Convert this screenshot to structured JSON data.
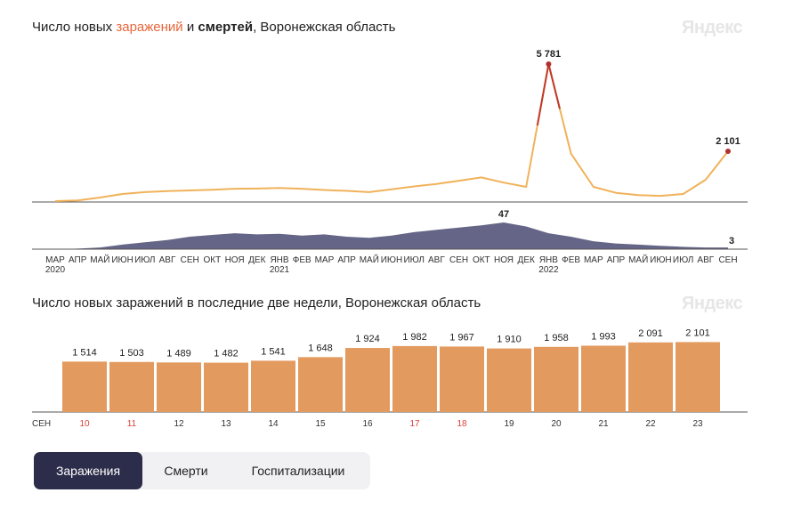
{
  "chart1": {
    "title_prefix": "Число новых ",
    "title_infections": "заражений",
    "title_and": " и ",
    "title_deaths": "смертей",
    "title_suffix": ", Воронежская область",
    "logo": "Яндекс"
  },
  "chart2": {
    "title": "Число новых заражений в последние две недели, Воронежская область",
    "logo": "Яндекс"
  },
  "tabs": {
    "infections": "Заражения",
    "deaths": "Смерти",
    "hospital": "Госпитализации"
  },
  "chart_data": [
    {
      "type": "line",
      "series": [
        {
          "name": "заражений",
          "color": "#f0b25a",
          "peak_color": "#c0392b",
          "peak_label": "5 781",
          "last_label": "2 101",
          "x": [
            "2020-03",
            "2020-04",
            "2020-05",
            "2020-06",
            "2020-07",
            "2020-08",
            "2020-09",
            "2020-10",
            "2020-11",
            "2020-12",
            "2021-01",
            "2021-02",
            "2021-03",
            "2021-04",
            "2021-05",
            "2021-06",
            "2021-07",
            "2021-08",
            "2021-09",
            "2021-10",
            "2021-11",
            "2021-12",
            "2022-01",
            "2022-02",
            "2022-03",
            "2022-04",
            "2022-05",
            "2022-06",
            "2022-07",
            "2022-08",
            "2022-09"
          ],
          "values": [
            0,
            30,
            150,
            300,
            380,
            420,
            450,
            480,
            520,
            530,
            550,
            520,
            470,
            430,
            380,
            500,
            620,
            720,
            860,
            1000,
            780,
            600,
            5781,
            2000,
            600,
            350,
            250,
            220,
            300,
            900,
            2101
          ]
        },
        {
          "name": "смертей",
          "color": "#4a4a72",
          "peak_label": "47",
          "last_label": "3",
          "values": [
            0,
            1,
            3,
            8,
            12,
            16,
            22,
            25,
            28,
            26,
            27,
            24,
            26,
            22,
            20,
            24,
            30,
            34,
            38,
            42,
            47,
            40,
            28,
            22,
            14,
            10,
            8,
            6,
            4,
            3,
            3
          ]
        }
      ],
      "xticks": [
        "МАР",
        "АПР",
        "МАЙ",
        "ИЮН",
        "ИЮЛ",
        "АВГ",
        "СЕН",
        "ОКТ",
        "НОЯ",
        "ДЕК",
        "ЯНВ",
        "ФЕВ",
        "МАР",
        "АПР",
        "МАЙ",
        "ИЮН",
        "ИЮЛ",
        "АВГ",
        "СЕН",
        "ОКТ",
        "НОЯ",
        "ДЕК",
        "ЯНВ",
        "ФЕВ",
        "МАР",
        "АПР",
        "МАЙ",
        "ИЮН",
        "ИЮЛ",
        "АВГ",
        "СЕН"
      ],
      "year_labels": [
        {
          "index": 0,
          "label": "2020"
        },
        {
          "index": 10,
          "label": "2021"
        },
        {
          "index": 22,
          "label": "2022"
        }
      ]
    },
    {
      "type": "bar",
      "categories": [
        "10",
        "11",
        "12",
        "13",
        "14",
        "15",
        "16",
        "17",
        "18",
        "19",
        "20",
        "21",
        "22",
        "23"
      ],
      "values": [
        1514,
        1503,
        1489,
        1482,
        1541,
        1648,
        1924,
        1982,
        1967,
        1910,
        1958,
        1993,
        2091,
        2101
      ],
      "value_labels": [
        "1 514",
        "1 503",
        "1 489",
        "1 482",
        "1 541",
        "1 648",
        "1 924",
        "1 982",
        "1 967",
        "1 910",
        "1 958",
        "1 993",
        "2 091",
        "2 101"
      ],
      "weekend": [
        true,
        true,
        false,
        false,
        false,
        false,
        false,
        true,
        true,
        false,
        false,
        false,
        false,
        false
      ],
      "month_label": "СЕН",
      "bar_color": "#e39a5e",
      "weekend_color": "#d9433a"
    }
  ]
}
